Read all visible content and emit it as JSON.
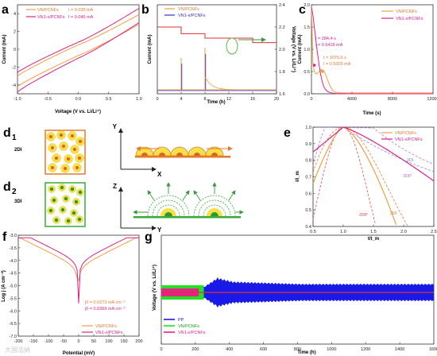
{
  "colors": {
    "orange": "#f0a040",
    "magenta": "#e0208a",
    "blue": "#3a2ad0",
    "red": "#e03030",
    "green": "#3a9a3a",
    "pink": "#e8208a",
    "bright_blue": "#1a1ae8",
    "bright_green": "#22e022",
    "yellow": "#f5e04a"
  },
  "panels": {
    "a": {
      "letter": "a"
    },
    "b": {
      "letter": "b"
    },
    "c": {
      "letter": "c"
    },
    "d1": {
      "letter": "d",
      "sub": "1"
    },
    "d2": {
      "letter": "d",
      "sub": "2"
    },
    "e": {
      "letter": "e"
    },
    "f": {
      "letter": "f"
    },
    "g": {
      "letter": "g"
    }
  },
  "labels": {
    "d1_mode": "2DI",
    "d2_mode": "3DI",
    "axis_Y": "Y",
    "axis_X": "X",
    "axis_Z": "Z"
  },
  "watermark": "大国浩纳",
  "chart_data": [
    {
      "id": "a",
      "type": "line",
      "xlabel": "Voltage (V vs. Li/Li⁺)",
      "ylabel": "Current (mA)",
      "xlim": [
        -1.0,
        1.0
      ],
      "ylim": [
        -5,
        5
      ],
      "xticks": [
        "-1.0",
        "-0.5",
        "0.0",
        "0.5",
        "1.0"
      ],
      "yticks": [
        "-4",
        "-2",
        "0",
        "2",
        "4"
      ],
      "legend": [
        {
          "name": "VN/PCNFs",
          "note": "I = 0.035 mA"
        },
        {
          "name": "VN1-x/PCNFs",
          "note": "I = 0.046 mA"
        }
      ],
      "series": [
        {
          "name": "VN/PCNFs",
          "upper": [
            [
              -1.0,
              -3.0
            ],
            [
              0,
              0.5
            ],
            [
              1.0,
              3.9
            ]
          ],
          "lower": [
            [
              -1.0,
              -4.2
            ],
            [
              0,
              -0.7
            ],
            [
              1.0,
              2.8
            ]
          ]
        },
        {
          "name": "VN1-x/PCNFs",
          "upper": [
            [
              -1.0,
              -2.6
            ],
            [
              0,
              0.8
            ],
            [
              1.0,
              4.6
            ]
          ],
          "lower": [
            [
              -1.0,
              -4.8
            ],
            [
              0,
              -1.0
            ],
            [
              1.0,
              3.0
            ]
          ]
        }
      ]
    },
    {
      "id": "b",
      "type": "line",
      "xlabel": "Time (h)",
      "ylabel": "Current (mA)",
      "ylabel_right": "Voltage (V vs. Li/Li⁺)",
      "xlim": [
        0,
        20
      ],
      "xticks": [
        "0",
        "4",
        "8",
        "12",
        "16",
        "20"
      ],
      "yticks_right": [
        "1.6",
        "1.8",
        "2.0",
        "2.2",
        "2.4"
      ],
      "ylim_right": [
        1.6,
        2.4
      ],
      "legend": [
        "VN/PCNFs",
        "VN1-x/PCNFs"
      ],
      "voltage": [
        [
          0,
          2.2
        ],
        [
          4,
          2.2
        ],
        [
          4,
          2.14
        ],
        [
          8,
          2.14
        ],
        [
          8,
          2.1
        ],
        [
          12,
          2.1
        ],
        [
          16,
          2.1
        ],
        [
          16,
          2.06
        ],
        [
          20,
          2.06
        ]
      ],
      "current_spikes_h": [
        4,
        8
      ]
    },
    {
      "id": "c",
      "type": "line",
      "xlabel": "Time (s)",
      "ylabel": "Current (mA)",
      "xlim": [
        0,
        12000
      ],
      "ylim": [
        0,
        2.0
      ],
      "xticks": [
        "0",
        "4000",
        "8000",
        "12000"
      ],
      "yticks": [
        "0.0",
        "0.5",
        "1.0",
        "1.5",
        "2.0"
      ],
      "legend": [
        "VN/PCNFs",
        "VN1-x/PCNFs"
      ],
      "annotations": [
        {
          "series": "VN1-x/PCNFs",
          "t_label": "t = 284.4 s",
          "i_label": "I = 0.6418 mA",
          "t": 284.4,
          "i": 0.6418
        },
        {
          "series": "VN/PCNFs",
          "t_label": "t = 1075.6 s",
          "i_label": "I = 0.5003 mA",
          "t": 1075.6,
          "i": 0.5003
        }
      ]
    },
    {
      "id": "e",
      "type": "line",
      "xlabel": "t/t_m",
      "ylabel": "i/i_m",
      "xlim": [
        0.5,
        2.5
      ],
      "ylim": [
        0.4,
        1.0
      ],
      "xticks": [
        "0.5",
        "1.0",
        "1.5",
        "2.0",
        "2.5"
      ],
      "yticks": [
        "0.4",
        "0.5",
        "0.6",
        "0.7",
        "0.8",
        "0.9",
        "1.0"
      ],
      "legend": [
        "VN/PCNFs",
        "VN1-x/PCNFs"
      ],
      "curve_labels": [
        "3DI",
        "3DP",
        "2DP",
        "2DI"
      ]
    },
    {
      "id": "f",
      "type": "line",
      "xlabel": "Potential (mV)",
      "ylabel": "Log j (A cm⁻²)",
      "xlim": [
        -200,
        200
      ],
      "ylim": [
        -7,
        -3
      ],
      "xticks": [
        "-200",
        "-150",
        "-100",
        "-50",
        "0",
        "50",
        "100",
        "150",
        "200"
      ],
      "yticks": [
        "-3.0",
        "-3.5",
        "-4.0",
        "-4.5",
        "-5.0",
        "-5.5",
        "-6.0",
        "-6.5",
        "-7.0"
      ],
      "legend": [
        "VN/PCNFs",
        "VN1-x/PCNFs"
      ],
      "annotations": [
        {
          "label": "j0 = 0.0273 mA cm⁻²",
          "series": "VN/PCNFs"
        },
        {
          "label": "j0 = 0.0369 mA cm⁻²",
          "series": "VN1-x/PCNFs"
        }
      ]
    },
    {
      "id": "g",
      "type": "line",
      "xlabel": "Time (h)",
      "ylabel": "Voltage (V vs. Li/Li⁺)",
      "xlim": [
        0,
        1600
      ],
      "xticks": [
        "0",
        "200",
        "400",
        "600",
        "800",
        "1000",
        "1200",
        "1400",
        "1600"
      ],
      "legend": [
        "PP",
        "VN/PCNFs",
        "VN1-x/PCNFs"
      ]
    }
  ]
}
